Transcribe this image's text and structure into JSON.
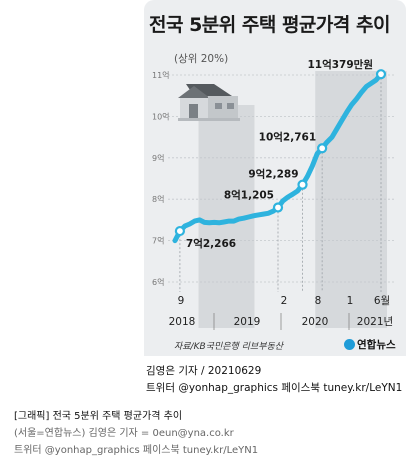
{
  "header": {
    "title": "전국 5분위 주택 평균가격 추이",
    "subtitle": "(상위 20%)"
  },
  "chart_data": {
    "type": "line",
    "title": "전국 5분위 주택 평균가격 추이",
    "subtitle": "(상위 20%)",
    "y_ticks": [
      "6억",
      "7억",
      "8억",
      "9억",
      "10억",
      "11억"
    ],
    "ylim": [
      6,
      11
    ],
    "x_tick_labels": [
      "9",
      "2",
      "8",
      "1",
      "6월"
    ],
    "year_labels": [
      "2018",
      "2019",
      "2020",
      "2021년"
    ],
    "series": [
      {
        "values": [
          7.0,
          7.23,
          7.35,
          7.4,
          7.47,
          7.5,
          7.44,
          7.43,
          7.44,
          7.43,
          7.45,
          7.47,
          7.47,
          7.52,
          7.54,
          7.57,
          7.6,
          7.62,
          7.64,
          7.66,
          7.71,
          7.8,
          7.96,
          8.05,
          8.12,
          8.2,
          8.35,
          8.55,
          8.8,
          9.1,
          9.23,
          9.38,
          9.5,
          9.7,
          9.9,
          10.1,
          10.28,
          10.42,
          10.58,
          10.72,
          10.8,
          10.88,
          11.02
        ]
      }
    ],
    "annotations": [
      {
        "label": "7억2,266",
        "value": 7.2266
      },
      {
        "label": "8억1,205",
        "value": 8.1205
      },
      {
        "label": "9억2,289",
        "value": 9.2289
      },
      {
        "label": "10억2,761",
        "value": 10.2761
      },
      {
        "label": "11억379만원",
        "value": 11.0379
      }
    ],
    "line_color": "#2eb3de",
    "grid": true
  },
  "source": "자료/KB국민은행 리브부동산",
  "logo": "연합뉴스",
  "credit": {
    "line1": "김영은 기자 / 20210629",
    "line2": "트위터 @yonhap_graphics 페이스북 tuney.kr/LeYN1"
  },
  "footer": {
    "line1": "[그래픽] 전국 5분위 주택 평균가격 추이",
    "line2": "(서울=연합뉴스) 김영은 기자 = 0eun@yna.co.kr",
    "line3": "트위터 @yonhap_graphics 페이스북 tuney.kr/LeYN1"
  }
}
